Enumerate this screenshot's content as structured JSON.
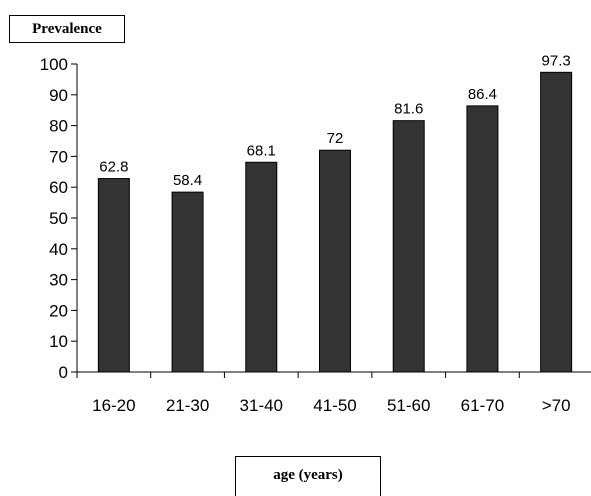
{
  "chart_data": {
    "type": "bar",
    "categories": [
      "16-20",
      "21-30",
      "31-40",
      "41-50",
      "51-60",
      "61-70",
      ">70"
    ],
    "values": [
      62.8,
      58.4,
      68.1,
      72,
      81.6,
      86.4,
      97.3
    ],
    "data_labels": [
      "62.8",
      "58.4",
      "68.1",
      "72",
      "81.6",
      "86.4",
      "97.3"
    ],
    "ylabel": "Prevalence",
    "xlabel": "age (years)",
    "ylim": [
      0,
      100
    ],
    "yticks": [
      0,
      10,
      20,
      30,
      40,
      50,
      60,
      70,
      80,
      90,
      100
    ],
    "grid": false,
    "bar_color": "#333333"
  }
}
